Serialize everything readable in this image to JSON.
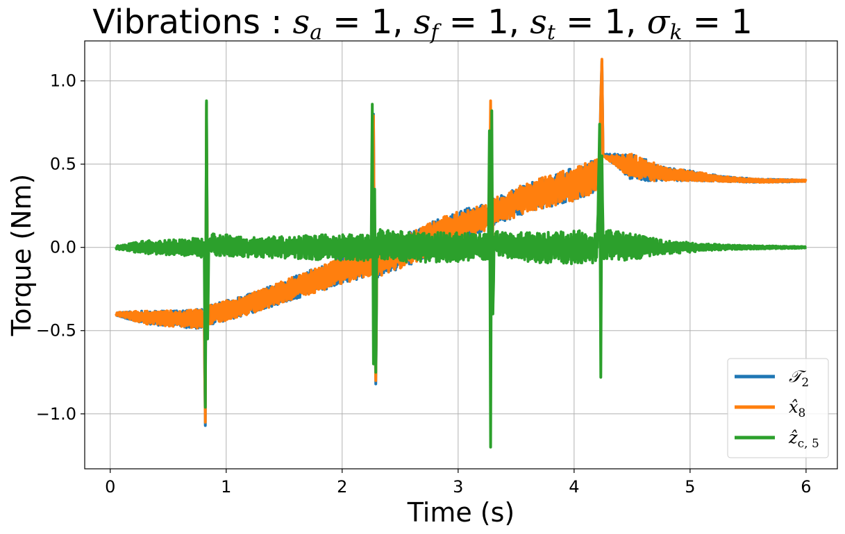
{
  "chart_data": {
    "type": "line",
    "title": {
      "prefix": "Vibrations : ",
      "params": [
        {
          "sym": "s",
          "sub": "a",
          "val": "= 1"
        },
        {
          "sym": "s",
          "sub": "f",
          "val": "= 1"
        },
        {
          "sym": "s",
          "sub": "t",
          "val": "= 1"
        },
        {
          "sym": "σ",
          "sub": "k",
          "val": "= 1"
        }
      ]
    },
    "xlabel": "Time (s)",
    "ylabel": "Torque (Nm)",
    "xlim": [
      -0.22,
      6.27
    ],
    "ylim": [
      -1.33,
      1.24
    ],
    "xticks": [
      0,
      1,
      2,
      3,
      4,
      5,
      6
    ],
    "xtick_labels": [
      "0",
      "1",
      "2",
      "3",
      "4",
      "5",
      "6"
    ],
    "yticks": [
      -1.0,
      -0.5,
      0.0,
      0.5,
      1.0
    ],
    "ytick_labels": [
      "−1.0",
      "−0.5",
      "0.0",
      "0.5",
      "1.0"
    ],
    "grid": true,
    "legend_position": "lower-right",
    "series": [
      {
        "name": "T2",
        "label_main": "𝒯",
        "label_sub": "2",
        "color": "#1f77b4",
        "x": [
          0.05,
          0.3,
          0.6,
          0.81,
          0.82,
          0.83,
          0.84,
          1.2,
          1.6,
          2.0,
          2.26,
          2.27,
          2.28,
          2.29,
          2.3,
          2.6,
          3.0,
          3.27,
          3.28,
          3.29,
          3.3,
          3.6,
          4.0,
          4.22,
          4.23,
          4.24,
          4.25,
          4.5,
          4.8,
          5.0,
          5.3,
          5.6,
          6.0
        ],
        "y": [
          -0.4,
          -0.42,
          -0.43,
          -0.43,
          -1.07,
          0.87,
          -0.41,
          -0.34,
          -0.24,
          -0.14,
          -0.09,
          0.8,
          -0.36,
          -0.82,
          -0.08,
          0.0,
          0.13,
          0.19,
          0.78,
          -0.3,
          0.21,
          0.3,
          0.38,
          0.44,
          0.9,
          1.12,
          0.56,
          0.48,
          0.44,
          0.43,
          0.41,
          0.4,
          0.4
        ],
        "amplitude": [
          0.01,
          0.04,
          0.05,
          0.06,
          0,
          0,
          0.06,
          0.06,
          0.07,
          0.08,
          0.08,
          0,
          0,
          0,
          0.1,
          0.1,
          0.09,
          0.08,
          0,
          0,
          0.08,
          0.09,
          0.1,
          0.1,
          0,
          0,
          0,
          0.08,
          0.04,
          0.03,
          0.015,
          0.01,
          0.005
        ]
      },
      {
        "name": "x8",
        "label_main": "x̂",
        "label_sub": "8",
        "color": "#ff7f0e",
        "x": [
          0.05,
          0.3,
          0.6,
          0.81,
          0.82,
          0.83,
          0.84,
          1.2,
          1.6,
          2.0,
          2.26,
          2.27,
          2.28,
          2.29,
          2.3,
          2.6,
          3.0,
          3.27,
          3.28,
          3.29,
          3.3,
          3.6,
          4.0,
          4.22,
          4.23,
          4.24,
          4.25,
          4.5,
          4.8,
          5.0,
          5.3,
          5.6,
          6.0
        ],
        "y": [
          -0.4,
          -0.42,
          -0.43,
          -0.43,
          -1.05,
          0.86,
          -0.41,
          -0.34,
          -0.24,
          -0.14,
          -0.09,
          0.79,
          -0.35,
          -0.8,
          -0.08,
          0.0,
          0.13,
          0.19,
          0.88,
          -0.28,
          0.21,
          0.3,
          0.38,
          0.44,
          0.88,
          1.13,
          0.55,
          0.48,
          0.44,
          0.43,
          0.41,
          0.4,
          0.4
        ],
        "amplitude": [
          0.01,
          0.04,
          0.05,
          0.06,
          0,
          0,
          0.06,
          0.06,
          0.07,
          0.08,
          0.08,
          0,
          0,
          0,
          0.1,
          0.1,
          0.09,
          0.08,
          0,
          0,
          0.08,
          0.09,
          0.1,
          0.1,
          0,
          0,
          0,
          0.08,
          0.04,
          0.03,
          0.015,
          0.01,
          0.005
        ]
      },
      {
        "name": "zc5",
        "label_main": "ẑ",
        "label_sub": "c, 5",
        "color": "#2ca02c",
        "x": [
          0.05,
          0.3,
          0.6,
          0.81,
          0.82,
          0.83,
          0.84,
          0.85,
          1.2,
          1.6,
          2.0,
          2.25,
          2.26,
          2.27,
          2.28,
          2.29,
          2.3,
          2.6,
          3.0,
          3.26,
          3.27,
          3.28,
          3.29,
          3.3,
          3.31,
          3.6,
          4.0,
          4.2,
          4.22,
          4.23,
          4.24,
          4.25,
          4.5,
          4.8,
          5.0,
          5.3,
          5.6,
          6.0
        ],
        "y": [
          0.0,
          0.0,
          0.0,
          0.0,
          -0.96,
          0.88,
          -0.55,
          0.02,
          0.0,
          0.0,
          0.0,
          0.0,
          0.86,
          -0.7,
          0.35,
          -0.75,
          0.02,
          0.0,
          0.0,
          0.0,
          0.7,
          -1.2,
          0.82,
          -0.4,
          0.02,
          0.0,
          0.0,
          0.0,
          0.74,
          -0.78,
          0.55,
          0.02,
          0.0,
          0.0,
          0.0,
          0.0,
          0.0,
          0.0
        ],
        "amplitude": [
          0.01,
          0.04,
          0.05,
          0.06,
          0,
          0,
          0,
          0.07,
          0.06,
          0.07,
          0.08,
          0.08,
          0,
          0,
          0,
          0,
          0.09,
          0.09,
          0.09,
          0.08,
          0,
          0,
          0,
          0,
          0.08,
          0.09,
          0.1,
          0.1,
          0,
          0,
          0,
          0.09,
          0.08,
          0.04,
          0.03,
          0.015,
          0.01,
          0.005
        ]
      }
    ]
  }
}
